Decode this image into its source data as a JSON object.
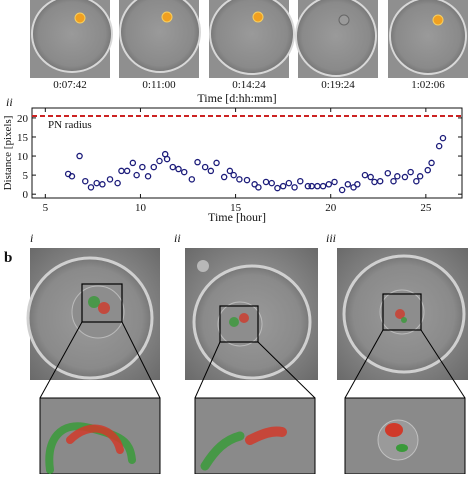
{
  "panel_a": {
    "timestamps": [
      "0:07:42",
      "0:11:00",
      "0:14:24",
      "0:19:24",
      "1:02:06"
    ],
    "time_axis_label": "Time [d:hh:mm]"
  },
  "chart_data": {
    "type": "scatter",
    "label": "ii",
    "xlabel": "Time [hour]",
    "ylabel": "Distance [pixels]",
    "color": "#1c1c7a",
    "x": [
      6.2,
      6.4,
      6.8,
      7.1,
      7.4,
      7.7,
      8.0,
      8.4,
      8.8,
      9.0,
      9.3,
      9.6,
      9.8,
      10.1,
      10.4,
      10.7,
      11.0,
      11.3,
      11.4,
      11.7,
      12.0,
      12.3,
      12.7,
      13.0,
      13.4,
      13.7,
      14.0,
      14.4,
      14.7,
      14.9,
      15.2,
      15.6,
      16.0,
      16.2,
      16.6,
      16.9,
      17.2,
      17.5,
      17.8,
      18.1,
      18.4,
      18.8,
      19.0,
      19.3,
      19.6,
      19.9,
      20.2,
      20.6,
      20.9,
      21.2,
      21.4,
      21.8,
      22.1,
      22.3,
      22.6,
      23.0,
      23.3,
      23.5,
      23.9,
      24.2,
      24.5,
      24.7,
      25.1,
      25.3,
      25.7,
      25.9
    ],
    "values": [
      5.3,
      4.7,
      10.0,
      3.4,
      1.8,
      2.9,
      2.6,
      3.9,
      2.9,
      6.1,
      6.1,
      8.2,
      5.0,
      7.1,
      4.7,
      7.1,
      8.7,
      10.5,
      9.2,
      7.1,
      6.6,
      5.8,
      3.9,
      8.4,
      7.1,
      6.1,
      8.2,
      4.5,
      6.1,
      5.0,
      3.9,
      3.7,
      2.6,
      1.8,
      3.2,
      2.9,
      1.6,
      2.1,
      2.9,
      1.8,
      3.4,
      2.1,
      2.1,
      2.1,
      2.1,
      2.6,
      3.2,
      1.1,
      2.6,
      1.8,
      2.6,
      5.0,
      4.5,
      3.2,
      3.4,
      5.5,
      3.4,
      4.7,
      4.5,
      5.8,
      3.4,
      4.7,
      6.3,
      8.2,
      12.6,
      14.7
    ],
    "xlim": [
      4.3,
      26.9
    ],
    "ylim": [
      -1,
      22.6
    ],
    "xticks": [
      5,
      10,
      15,
      20,
      25
    ],
    "yticks": [
      0,
      5,
      10,
      15,
      20
    ],
    "reference_line": {
      "value": 20.5,
      "label": "PN radius",
      "color": "#cc2222"
    }
  },
  "panel_b": {
    "label": "b",
    "sublabels": [
      "i",
      "ii",
      "iii"
    ]
  }
}
